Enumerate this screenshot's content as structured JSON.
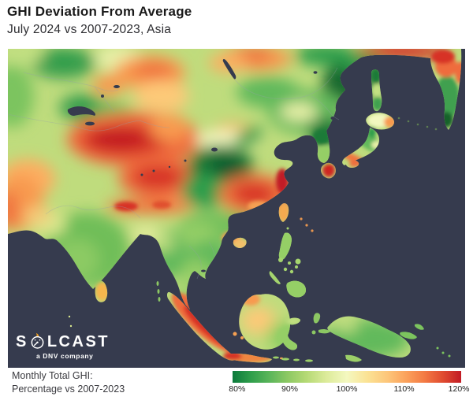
{
  "header": {
    "title": "GHI Deviation From Average",
    "subtitle": "July 2024 vs 2007-2023, Asia"
  },
  "logo": {
    "text_before_icon": "S",
    "text_after_icon": "LCAST",
    "tagline": "a DNV company",
    "flame_color": "#f6a21d"
  },
  "legend": {
    "label_line1": "Monthly Total GHI:",
    "label_line2": "Percentage vs 2007-2023",
    "ticks": [
      "80%",
      "90%",
      "100%",
      "110%",
      "120%"
    ],
    "gradient_css": "linear-gradient(90deg,#0c7a3c 0%,#2f9e4b 8%,#5ab55a 16%,#8cc863 24%,#b4d974 32%,#dceb9a 41%,#f4f8c0 50%,#fbe294 59%,#fdc579 68%,#fba15b 76%,#f37a44 84%,#e04c30 92%,#c21b25 100%)"
  },
  "map": {
    "ocean_color": "#363b4e",
    "land_base_color": "#bfdc7d",
    "border_line_color": "#97a0ac",
    "heat_blobs_format": [
      "x",
      "y",
      "rx",
      "ry",
      "color",
      "layer(s=soft,h=sharp)",
      "rotation"
    ],
    "heat_blobs": [
      [
        70,
        18,
        42,
        20,
        "#3fa04f",
        "s"
      ],
      [
        72,
        14,
        20,
        10,
        "#2f9e4b",
        "s"
      ],
      [
        140,
        12,
        30,
        16,
        "#e8f0a8",
        "s"
      ],
      [
        20,
        8,
        25,
        12,
        "#c2e082",
        "s"
      ],
      [
        5,
        60,
        28,
        40,
        "#7cc45e",
        "s"
      ],
      [
        128,
        46,
        20,
        14,
        "#f89a50",
        "s"
      ],
      [
        180,
        30,
        45,
        22,
        "#f89a50",
        "s"
      ],
      [
        185,
        28,
        25,
        12,
        "#f0763f",
        "s"
      ],
      [
        95,
        75,
        30,
        18,
        "#3fa04f",
        "s"
      ],
      [
        100,
        72,
        15,
        9,
        "#2f9e4b",
        "s"
      ],
      [
        135,
        80,
        28,
        12,
        "#62b95c",
        "s",
        15
      ],
      [
        195,
        60,
        35,
        20,
        "#fdc978",
        "s"
      ],
      [
        25,
        165,
        35,
        25,
        "#fdae61",
        "s"
      ],
      [
        15,
        195,
        30,
        35,
        "#f89a50",
        "s"
      ],
      [
        0,
        205,
        15,
        25,
        "#f0763f",
        "s"
      ],
      [
        160,
        115,
        85,
        35,
        "#ef6c3c",
        "s"
      ],
      [
        148,
        116,
        55,
        20,
        "#d73027",
        "s"
      ],
      [
        140,
        114,
        35,
        13,
        "#c31f24",
        "s"
      ],
      [
        205,
        100,
        25,
        18,
        "#f89a50",
        "s"
      ],
      [
        225,
        185,
        40,
        18,
        "#fdc978",
        "s"
      ],
      [
        195,
        165,
        55,
        25,
        "#ef6c3c",
        "s"
      ],
      [
        190,
        163,
        32,
        15,
        "#d73027",
        "s"
      ],
      [
        180,
        200,
        55,
        10,
        "#f0763f",
        "s"
      ],
      [
        315,
        12,
        45,
        16,
        "#f89a50",
        "s"
      ],
      [
        310,
        8,
        25,
        10,
        "#f0763f",
        "s"
      ],
      [
        280,
        18,
        25,
        12,
        "#fdae61",
        "s"
      ],
      [
        330,
        55,
        40,
        20,
        "#62b95c",
        "s"
      ],
      [
        285,
        110,
        28,
        16,
        "#f9b060",
        "s"
      ],
      [
        404,
        8,
        40,
        14,
        "#2f9e4b",
        "s"
      ],
      [
        500,
        3,
        58,
        11,
        "#d73027",
        "s"
      ],
      [
        278,
        115,
        40,
        12,
        "#f2f7bf",
        "s"
      ],
      [
        270,
        150,
        42,
        28,
        "#1e7a38",
        "s"
      ],
      [
        278,
        152,
        24,
        16,
        "#0a5c2e",
        "s"
      ],
      [
        250,
        180,
        30,
        22,
        "#2f9e4b",
        "s"
      ],
      [
        305,
        112,
        20,
        10,
        "#3fa04f",
        "s",
        -30
      ],
      [
        315,
        185,
        48,
        26,
        "#f0763f",
        "s"
      ],
      [
        312,
        184,
        28,
        14,
        "#d73027",
        "s"
      ],
      [
        265,
        225,
        50,
        20,
        "#74c05c",
        "s"
      ],
      [
        240,
        235,
        25,
        14,
        "#95cf66",
        "s"
      ],
      [
        375,
        80,
        45,
        28,
        "#62b95c",
        "s"
      ],
      [
        370,
        80,
        25,
        12,
        "#e8f0a8",
        "s"
      ],
      [
        405,
        105,
        25,
        18,
        "#1e7a38",
        "s"
      ],
      [
        432,
        45,
        34,
        28,
        "#17682f",
        "s"
      ],
      [
        450,
        20,
        25,
        14,
        "#2f9e4b",
        "s"
      ],
      [
        405,
        70,
        18,
        14,
        "#62b95c",
        "s"
      ],
      [
        100,
        255,
        55,
        48,
        "#6fbe58",
        "s"
      ],
      [
        88,
        268,
        28,
        26,
        "#8cca63",
        "s"
      ],
      [
        52,
        222,
        22,
        16,
        "#d9e88e",
        "s"
      ],
      [
        38,
        212,
        18,
        12,
        "#f3cb79",
        "s"
      ],
      [
        175,
        235,
        18,
        10,
        "#e8eda0",
        "s"
      ],
      [
        205,
        262,
        24,
        30,
        "#62b95c",
        "s"
      ],
      [
        197,
        247,
        14,
        10,
        "#c2e082",
        "s"
      ],
      [
        255,
        265,
        28,
        22,
        "#62b95c",
        "s"
      ],
      [
        238,
        285,
        18,
        18,
        "#95cf66",
        "s"
      ],
      [
        225,
        318,
        10,
        18,
        "#95cf66",
        "s"
      ],
      [
        318,
        345,
        22,
        18,
        "#fdc978",
        "s"
      ],
      [
        352,
        365,
        25,
        20,
        "#95cf66",
        "s"
      ],
      [
        455,
        368,
        55,
        25,
        "#62b95c",
        "s"
      ],
      [
        430,
        352,
        14,
        8,
        "#c2e082",
        "s"
      ],
      [
        398,
        112,
        12,
        10,
        "#1e7a38",
        "h"
      ],
      [
        403,
        135,
        12,
        12,
        "#95cf66",
        "h"
      ],
      [
        471,
        91,
        15,
        9,
        "#f2f7bf",
        "h"
      ],
      [
        485,
        93,
        8,
        7,
        "#f89a50",
        "h"
      ],
      [
        455,
        115,
        22,
        10,
        "#62b95c",
        "h",
        40
      ],
      [
        462,
        106,
        5,
        7,
        "#2f9e4b",
        "h"
      ],
      [
        468,
        122,
        7,
        5,
        "#e8f0a8",
        "h"
      ],
      [
        440,
        140,
        18,
        5,
        "#f0763f",
        "h",
        25
      ],
      [
        440,
        146,
        7,
        4,
        "#ef6c3c",
        "h"
      ],
      [
        407,
        154,
        8,
        9,
        "#cf2820",
        "h"
      ],
      [
        467,
        34,
        7,
        10,
        "#1e7a38",
        "h"
      ],
      [
        468,
        53,
        7,
        8,
        "#c2e082",
        "h"
      ],
      [
        469,
        70,
        7,
        9,
        "#3fa04f",
        "h"
      ],
      [
        557,
        62,
        16,
        28,
        "#3fa04f",
        "h"
      ],
      [
        556,
        22,
        14,
        14,
        "#ef6c3c",
        "h"
      ],
      [
        552,
        10,
        15,
        9,
        "#d73027",
        "h"
      ],
      [
        574,
        30,
        7,
        14,
        "#ef6c3c",
        "h"
      ],
      [
        556,
        90,
        9,
        10,
        "#13622c",
        "h"
      ],
      [
        348,
        168,
        8,
        16,
        "#c21f25",
        "h"
      ],
      [
        318,
        200,
        14,
        7,
        "#f5a052",
        "h"
      ],
      [
        283,
        240,
        12,
        8,
        "#f89a50",
        "h"
      ],
      [
        150,
        200,
        15,
        6,
        "#d73027",
        "h"
      ],
      [
        195,
        198,
        12,
        5,
        "#e0502e",
        "h"
      ],
      [
        250,
        348,
        55,
        16,
        "#ef6c3c",
        "h",
        42
      ],
      [
        252,
        352,
        38,
        9,
        "#d73027",
        "h",
        42
      ],
      [
        305,
        392,
        30,
        7,
        "#f0853f",
        "h"
      ],
      [
        285,
        390,
        12,
        5,
        "#d73027",
        "h"
      ],
      [
        308,
        318,
        12,
        8,
        "#f89a50",
        "h"
      ],
      [
        120,
        308,
        9,
        12,
        "#f5b54e",
        "h"
      ],
      [
        350,
        208,
        7,
        12,
        "#f5a94f",
        "h"
      ],
      [
        295,
        248,
        9,
        7,
        "#f3c06a",
        "h"
      ],
      [
        358,
        368,
        18,
        18,
        "#95cf66",
        "h"
      ],
      [
        362,
        346,
        8,
        4,
        "#c2e082",
        "h"
      ],
      [
        350,
        250,
        14,
        22,
        "#95cf66",
        "h"
      ],
      [
        366,
        305,
        20,
        16,
        "#95cf66",
        "h"
      ]
    ],
    "approx_readings_vs_average": [
      {
        "area": "Tarim Basin / Xinjiang (NW China)",
        "approx": "115-120%"
      },
      {
        "area": "Western Tibet / Kunlun band",
        "approx": "110-118%"
      },
      {
        "area": "Sichuan / central China",
        "approx": "80-85%"
      },
      {
        "area": "Eastern China (Yangtze delta coast)",
        "approx": "112-118%"
      },
      {
        "area": "Southern Mongolia / Gobi",
        "approx": "108-112%"
      },
      {
        "area": "Northern Mongolia / Manchuria",
        "approx": "88-95%"
      },
      {
        "area": "Russian Far East",
        "approx": "80-85%"
      },
      {
        "area": "Arctic Siberia coast (top edge)",
        "approx": "115-120%"
      },
      {
        "area": "Kazakhstan steppe",
        "approx": "90-105% mixed"
      },
      {
        "area": "Pakistan / Afghanistan",
        "approx": "105-112%"
      },
      {
        "area": "India peninsula",
        "approx": "88-95%"
      },
      {
        "area": "Sri Lanka",
        "approx": "105-110%"
      },
      {
        "area": "Indochina",
        "approx": "90-97%"
      },
      {
        "area": "Korea",
        "approx": "83-92%"
      },
      {
        "area": "Japan interior",
        "approx": "88-95%"
      },
      {
        "area": "Japan southern coast & Kyushu",
        "approx": "110-118%"
      },
      {
        "area": "Sumatra & Java",
        "approx": "112-118%"
      },
      {
        "area": "Borneo",
        "approx": "95-105%"
      },
      {
        "area": "Philippines",
        "approx": "92-97%"
      },
      {
        "area": "New Guinea",
        "approx": "90-96%"
      }
    ]
  }
}
